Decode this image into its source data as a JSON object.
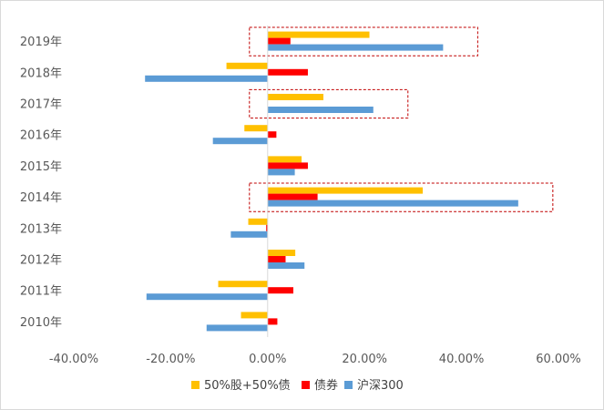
{
  "chart_data": {
    "type": "bar",
    "orientation": "horizontal",
    "categories": [
      "2019年",
      "2018年",
      "2017年",
      "2016年",
      "2015年",
      "2014年",
      "2013年",
      "2012年",
      "2011年",
      "2010年"
    ],
    "series": [
      {
        "name": "50%股+50%债",
        "color": "#FFC000",
        "values": [
          0.21,
          -0.085,
          0.115,
          -0.048,
          0.07,
          0.32,
          -0.04,
          0.057,
          -0.102,
          -0.055
        ]
      },
      {
        "name": "债券",
        "color": "#FF0000",
        "values": [
          0.047,
          0.083,
          0.0,
          0.018,
          0.083,
          0.103,
          -0.003,
          0.037,
          0.053,
          0.02
        ]
      },
      {
        "name": "沪深300",
        "color": "#5B9BD5",
        "values": [
          0.362,
          -0.253,
          0.218,
          -0.113,
          0.056,
          0.517,
          -0.076,
          0.076,
          -0.25,
          -0.126
        ]
      }
    ],
    "x_ticks": [
      "-40.00%",
      "-20.00%",
      "0.00%",
      "20.00%",
      "40.00%",
      "60.00%"
    ],
    "xlim": [
      -0.4,
      0.6
    ],
    "highlighted_categories": [
      "2019年",
      "2017年",
      "2014年"
    ],
    "highlight_color": "#C00000",
    "grid": false,
    "legend_position": "bottom",
    "title": "",
    "xlabel": "",
    "ylabel": ""
  }
}
